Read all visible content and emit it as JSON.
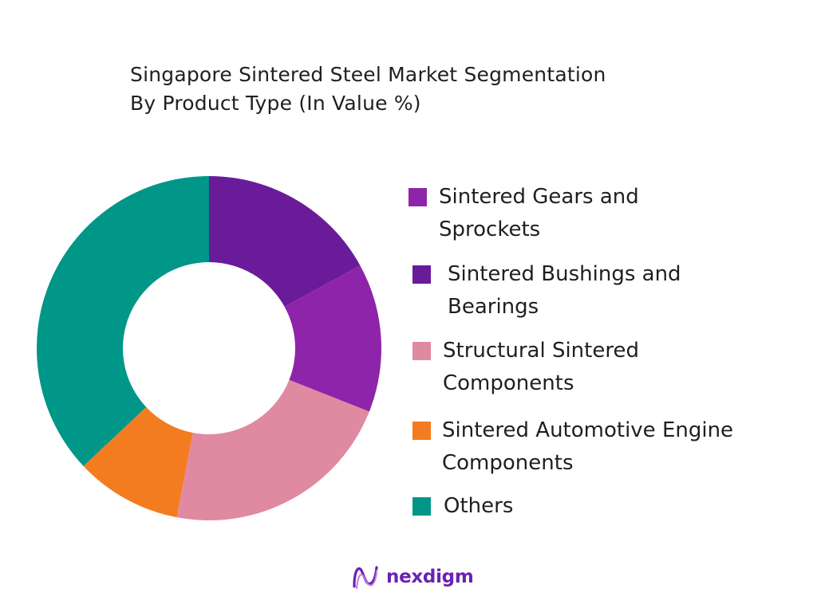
{
  "title": {
    "line1": "Singapore Sintered Steel Market Segmentation",
    "line2": "By Product Type (In Value %)"
  },
  "chart_data": {
    "type": "pie",
    "variant": "donut",
    "title": "Singapore Sintered Steel Market Segmentation By Product Type (In Value %)",
    "categories": [
      "Sintered Bushings and Bearings",
      "Sintered Gears and Sprockets",
      "Structural Sintered Components",
      "Sintered Automotive Engine Components",
      "Others"
    ],
    "values": [
      17,
      14,
      22,
      10,
      37
    ],
    "colors": [
      "#6a1b9a",
      "#8e24aa",
      "#df8aa1",
      "#f47c20",
      "#009688"
    ],
    "legend_position": "right"
  },
  "legend": [
    {
      "line1": "Sintered Gears and",
      "line2": "Sprockets",
      "color": "#8e24aa"
    },
    {
      "line1": "Sintered Bushings and",
      "line2": "Bearings",
      "color": "#6a1b9a"
    },
    {
      "line1": "Structural Sintered",
      "line2": "Components",
      "color": "#df8aa1"
    },
    {
      "line1": "Sintered Automotive Engine",
      "line2": "Components",
      "color": "#f47c20"
    },
    {
      "line1": "Others",
      "line2": "",
      "color": "#009688"
    }
  ],
  "brand": {
    "name": "nexdigm",
    "icon": "nexdigm-logo-icon",
    "color": "#6a22b0"
  }
}
